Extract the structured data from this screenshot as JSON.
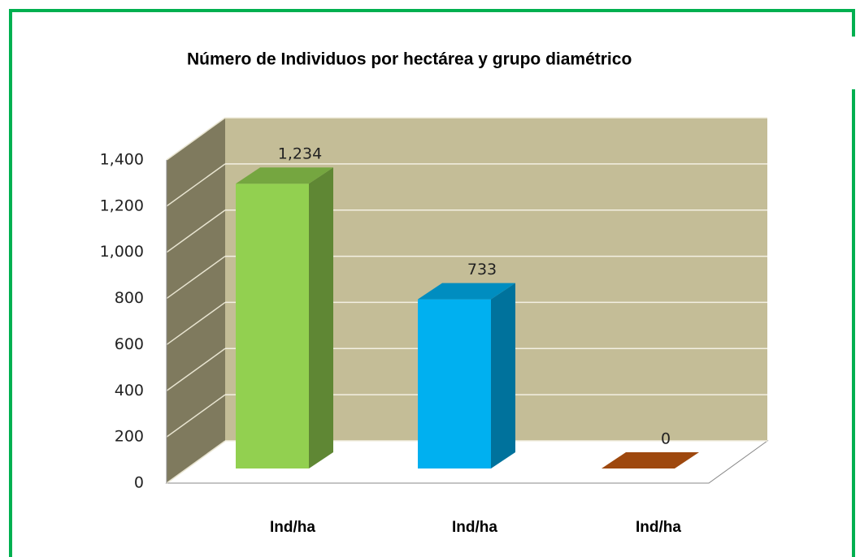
{
  "chart_data": {
    "type": "bar3d",
    "title": "Número de Individuos por  hectárea y grupo diamétrico",
    "categories": [
      "Ind/ha",
      "Ind/ha",
      "Ind/ha"
    ],
    "values": [
      1234,
      733,
      0
    ],
    "value_labels": [
      "1,234",
      "733",
      "0"
    ],
    "colors": [
      "#92d050",
      "#00b0f0",
      "#c55a11"
    ],
    "ylim": [
      0,
      1400
    ],
    "yticks": [
      0,
      200,
      400,
      600,
      800,
      {
        "value": 1000,
        "label": "1,000"
      },
      {
        "value": 1200,
        "label": "1,200"
      },
      {
        "value": 1400,
        "label": "1,400"
      }
    ],
    "grid": true
  }
}
